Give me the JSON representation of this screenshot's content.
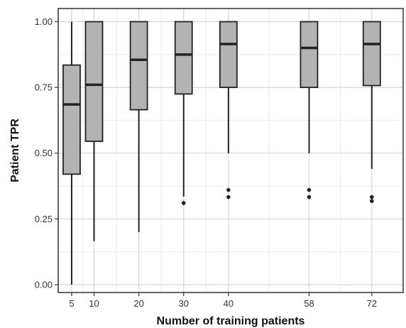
{
  "chart_data": {
    "type": "box",
    "title": "",
    "xlabel": "Number of training patients",
    "ylabel": "Patient TPR",
    "xlim": [
      2,
      79
    ],
    "ylim": [
      -0.03,
      1.05
    ],
    "x_ticks": [
      5,
      10,
      20,
      30,
      40,
      58,
      72
    ],
    "y_ticks": [
      0.0,
      0.25,
      0.5,
      0.75,
      1.0
    ],
    "y_tick_labels": [
      "0.00",
      "0.25",
      "0.50",
      "0.75",
      "1.00"
    ],
    "grid": true,
    "legend": "none",
    "colors": {
      "box_fill": "#b3b3b3",
      "box_stroke": "#222222",
      "grid_major": "#d4d4d4",
      "grid_minor": "#ececec",
      "panel_border": "#333333"
    },
    "boxes": [
      {
        "x": 5,
        "whisker_low": 0.0,
        "q1": 0.42,
        "median": 0.685,
        "q3": 0.835,
        "whisker_high": 1.0,
        "outliers": []
      },
      {
        "x": 10,
        "whisker_low": 0.165,
        "q1": 0.545,
        "median": 0.76,
        "q3": 1.0,
        "whisker_high": 1.0,
        "outliers": []
      },
      {
        "x": 20,
        "whisker_low": 0.2,
        "q1": 0.665,
        "median": 0.855,
        "q3": 1.0,
        "whisker_high": 1.0,
        "outliers": []
      },
      {
        "x": 30,
        "whisker_low": 0.335,
        "q1": 0.725,
        "median": 0.875,
        "q3": 1.0,
        "whisker_high": 1.0,
        "outliers": [
          0.31
        ]
      },
      {
        "x": 40,
        "whisker_low": 0.5,
        "q1": 0.75,
        "median": 0.915,
        "q3": 1.0,
        "whisker_high": 1.0,
        "outliers": [
          0.333,
          0.36
        ]
      },
      {
        "x": 58,
        "whisker_low": 0.5,
        "q1": 0.75,
        "median": 0.9,
        "q3": 1.0,
        "whisker_high": 1.0,
        "outliers": [
          0.333,
          0.36
        ]
      },
      {
        "x": 72,
        "whisker_low": 0.44,
        "q1": 0.757,
        "median": 0.915,
        "q3": 1.0,
        "whisker_high": 1.0,
        "outliers": [
          0.318,
          0.333
        ]
      }
    ]
  }
}
